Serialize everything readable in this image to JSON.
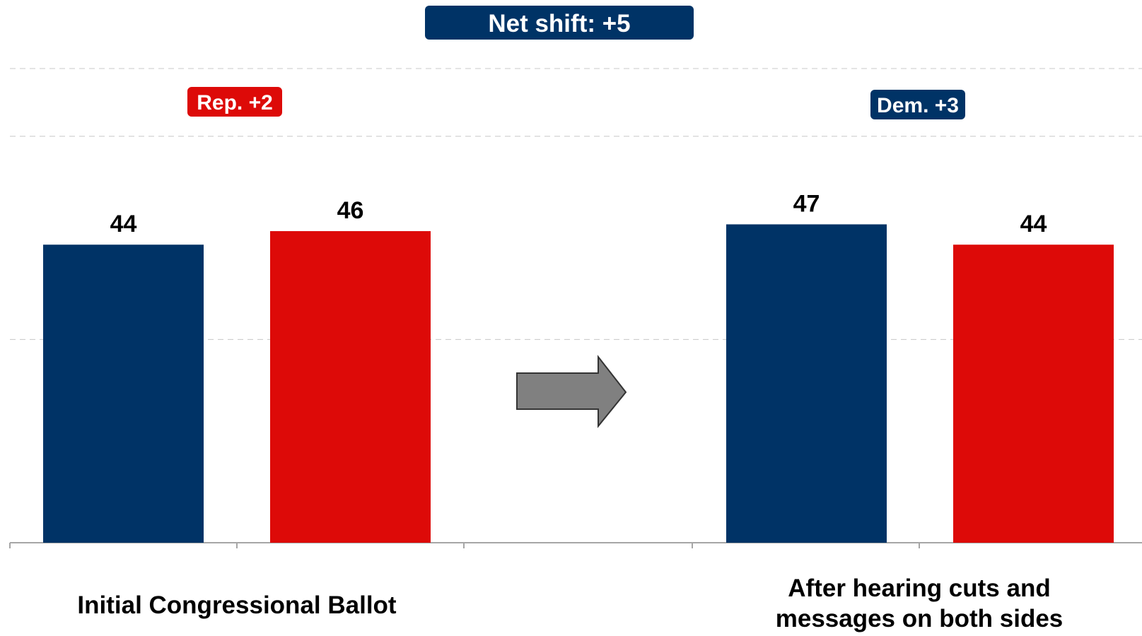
{
  "chart_data": {
    "type": "bar",
    "title": "",
    "xlabel": "",
    "ylabel": "",
    "ylim": [
      0,
      70
    ],
    "grid": true,
    "legend": "none",
    "groups": [
      {
        "label_lines": [
          "Initial Congressional Ballot"
        ],
        "bars": [
          {
            "party": "Democrat",
            "value": 44,
            "label": "44",
            "color": "#003366"
          },
          {
            "party": "Republican",
            "value": 46,
            "label": "46",
            "color": "#DD0A08"
          }
        ],
        "margin_badge": {
          "text": "Rep. +2",
          "color": "#DD0A08"
        }
      },
      {
        "label_lines": [
          "After hearing cuts and",
          "messages on both sides"
        ],
        "bars": [
          {
            "party": "Democrat",
            "value": 47,
            "label": "47",
            "color": "#003366"
          },
          {
            "party": "Republican",
            "value": 44,
            "label": "44",
            "color": "#DD0A08"
          }
        ],
        "margin_badge": {
          "text": "Dem. +3",
          "color": "#003366"
        }
      }
    ],
    "net_shift": {
      "text": "Net shift: +5",
      "color": "#003366"
    },
    "arrow": {
      "direction": "right",
      "color": "#808080"
    }
  }
}
